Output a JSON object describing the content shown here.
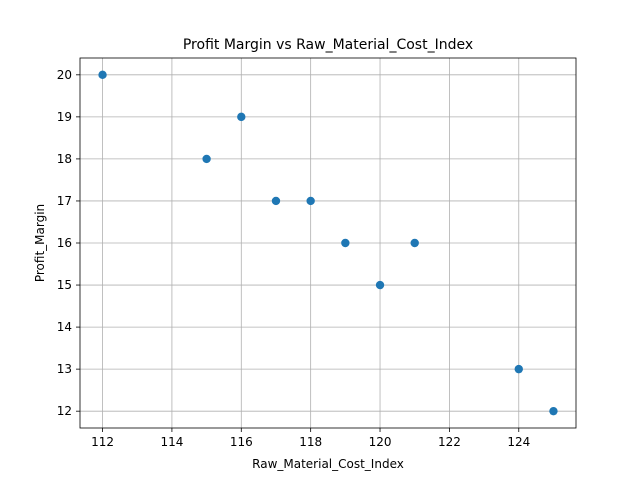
{
  "chart_data": {
    "type": "scatter",
    "title": "Profit Margin vs Raw_Material_Cost_Index",
    "xlabel": "Raw_Material_Cost_Index",
    "ylabel": "Profit_Margin",
    "xlim": [
      111.35,
      125.65
    ],
    "ylim": [
      11.6,
      20.4
    ],
    "x_ticks": [
      112,
      114,
      116,
      118,
      120,
      122,
      124
    ],
    "y_ticks": [
      12,
      13,
      14,
      15,
      16,
      17,
      18,
      19,
      20
    ],
    "grid": true,
    "marker_color": "#1f77b4",
    "series": [
      {
        "x": [
          112,
          115,
          116,
          117,
          118,
          119,
          120,
          121,
          124,
          125
        ],
        "y": [
          20,
          18,
          19,
          17,
          17,
          16,
          15,
          16,
          13,
          12
        ]
      }
    ]
  }
}
